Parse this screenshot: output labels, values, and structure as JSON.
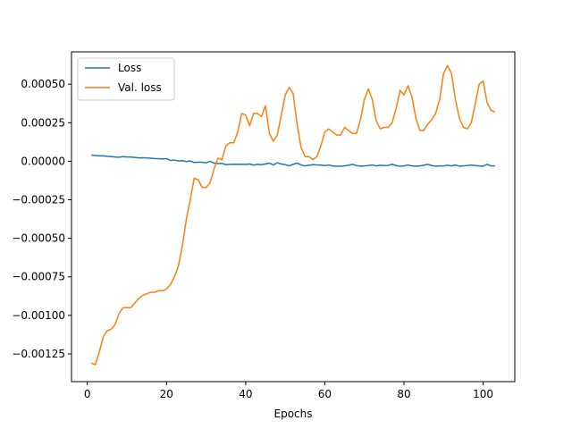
{
  "chart_data": {
    "type": "line",
    "title": "",
    "xlabel": "Epochs",
    "ylabel": "",
    "xlim": [
      -4,
      108
    ],
    "ylim": [
      -0.00143,
      0.00071
    ],
    "xticks": [
      0,
      20,
      40,
      60,
      80,
      100
    ],
    "xtick_labels": [
      "0",
      "20",
      "40",
      "60",
      "80",
      "100"
    ],
    "yticks": [
      -0.00125,
      -0.001,
      -0.00075,
      -0.0005,
      -0.00025,
      0.0,
      0.00025,
      0.0005
    ],
    "ytick_labels": [
      "−0.00125",
      "−0.00100",
      "−0.00075",
      "−0.00050",
      "−0.00025",
      "0.00000",
      "0.00025",
      "0.00050"
    ],
    "grid": false,
    "legend_position": "upper-left",
    "legend": [
      "Loss",
      "Val. loss"
    ],
    "series": [
      {
        "name": "Loss",
        "color": "#1f77b4",
        "x": [
          1,
          2,
          3,
          4,
          5,
          6,
          7,
          8,
          9,
          10,
          11,
          12,
          13,
          14,
          15,
          16,
          17,
          18,
          19,
          20,
          21,
          22,
          23,
          24,
          25,
          26,
          27,
          28,
          29,
          30,
          31,
          32,
          33,
          34,
          35,
          36,
          37,
          38,
          39,
          40,
          41,
          42,
          43,
          44,
          45,
          46,
          47,
          48,
          49,
          50,
          51,
          52,
          53,
          54,
          55,
          56,
          57,
          58,
          59,
          60,
          61,
          62,
          63,
          64,
          65,
          66,
          67,
          68,
          69,
          70,
          71,
          72,
          73,
          74,
          75,
          76,
          77,
          78,
          79,
          80,
          81,
          82,
          83,
          84,
          85,
          86,
          87,
          88,
          89,
          90,
          91,
          92,
          93,
          94,
          95,
          96,
          97,
          98,
          99,
          100,
          101,
          102,
          103
        ],
        "values": [
          4e-05,
          3.7e-05,
          3.5e-05,
          3.5e-05,
          3.2e-05,
          3e-05,
          2.8e-05,
          2.6e-05,
          3e-05,
          2.8e-05,
          2.7e-05,
          2.5e-05,
          2.2e-05,
          2.3e-05,
          2.1e-05,
          2e-05,
          1.8e-05,
          1.7e-05,
          1.5e-05,
          1.7e-05,
          5e-06,
          8e-06,
          2e-06,
          4e-06,
          -2e-06,
          2e-06,
          -8e-06,
          -6e-06,
          -6e-06,
          -1e-05,
          -1e-06,
          -1.2e-05,
          -1.5e-05,
          -1.4e-05,
          -2.2e-05,
          -2e-05,
          -1.9e-05,
          -2e-05,
          -1.9e-05,
          -2.1e-05,
          -1.8e-05,
          -2.5e-05,
          -2e-05,
          -2.2e-05,
          -1.8e-05,
          -1.2e-05,
          -2.4e-05,
          -1e-05,
          -1.8e-05,
          -2.2e-05,
          -3e-05,
          -2e-05,
          -1.2e-05,
          -2.4e-05,
          -3e-05,
          -2.6e-05,
          -2.2e-05,
          -2.4e-05,
          -2.5e-05,
          -2.8e-05,
          -2.4e-05,
          -3e-05,
          -3.2e-05,
          -3.2e-05,
          -3e-05,
          -2.6e-05,
          -2e-05,
          -2.8e-05,
          -3.2e-05,
          -3e-05,
          -2.8e-05,
          -2.4e-05,
          -3e-05,
          -2.6e-05,
          -2.8e-05,
          -2.7e-05,
          -2e-05,
          -2.8e-05,
          -3.2e-05,
          -3e-05,
          -2.4e-05,
          -3e-05,
          -3.2e-05,
          -3e-05,
          -2.6e-05,
          -2e-05,
          -2.8e-05,
          -3.2e-05,
          -3e-05,
          -3e-05,
          -2.6e-05,
          -3e-05,
          -2.4e-05,
          -3.2e-05,
          -3e-05,
          -2.8e-05,
          -2.4e-05,
          -2.8e-05,
          -3e-05,
          -3.2e-05,
          -2e-05,
          -3e-05,
          -3e-05
        ]
      },
      {
        "name": "Val. loss",
        "color": "#ff7f0e",
        "x": [
          1,
          2,
          3,
          4,
          5,
          6,
          7,
          8,
          9,
          10,
          11,
          12,
          13,
          14,
          15,
          16,
          17,
          18,
          19,
          20,
          21,
          22,
          23,
          24,
          25,
          26,
          27,
          28,
          29,
          30,
          31,
          32,
          33,
          34,
          35,
          36,
          37,
          38,
          39,
          40,
          41,
          42,
          43,
          44,
          45,
          46,
          47,
          48,
          49,
          50,
          51,
          52,
          53,
          54,
          55,
          56,
          57,
          58,
          59,
          60,
          61,
          62,
          63,
          64,
          65,
          66,
          67,
          68,
          69,
          70,
          71,
          72,
          73,
          74,
          75,
          76,
          77,
          78,
          79,
          80,
          81,
          82,
          83,
          84,
          85,
          86,
          87,
          88,
          89,
          90,
          91,
          92,
          93,
          94,
          95,
          96,
          97,
          98,
          99,
          100,
          101,
          102,
          103
        ],
        "values": [
          -0.00131,
          -0.00132,
          -0.00124,
          -0.00114,
          -0.0011,
          -0.00109,
          -0.00106,
          -0.00099,
          -0.00095,
          -0.00095,
          -0.00095,
          -0.00092,
          -0.00089,
          -0.00087,
          -0.00086,
          -0.00085,
          -0.00085,
          -0.00084,
          -0.00084,
          -0.00083,
          -0.0008,
          -0.00075,
          -0.00068,
          -0.00055,
          -0.00038,
          -0.00025,
          -0.00011,
          -0.00012,
          -0.00017,
          -0.00017,
          -0.00014,
          -5e-05,
          2e-05,
          1e-05,
          0.0001,
          0.00012,
          0.00012,
          0.00019,
          0.00031,
          0.0003,
          0.00023,
          0.00031,
          0.00031,
          0.00029,
          0.00036,
          0.00018,
          0.00013,
          0.00017,
          0.0003,
          0.00043,
          0.00048,
          0.00044,
          0.00024,
          9e-05,
          3e-05,
          3e-05,
          1e-05,
          3e-05,
          0.0001,
          0.00019,
          0.00021,
          0.00019,
          0.00017,
          0.00017,
          0.00022,
          0.0002,
          0.00018,
          0.00018,
          0.00027,
          0.0004,
          0.00047,
          0.0004,
          0.00026,
          0.00021,
          0.00022,
          0.00022,
          0.00025,
          0.00034,
          0.00046,
          0.00043,
          0.00049,
          0.00042,
          0.00028,
          0.0002,
          0.0002,
          0.00024,
          0.00027,
          0.00031,
          0.0004,
          0.00057,
          0.00062,
          0.00057,
          0.0004,
          0.00028,
          0.00022,
          0.00021,
          0.00025,
          0.00037,
          0.0005,
          0.00052,
          0.00038,
          0.00033,
          0.00032
        ]
      }
    ]
  }
}
